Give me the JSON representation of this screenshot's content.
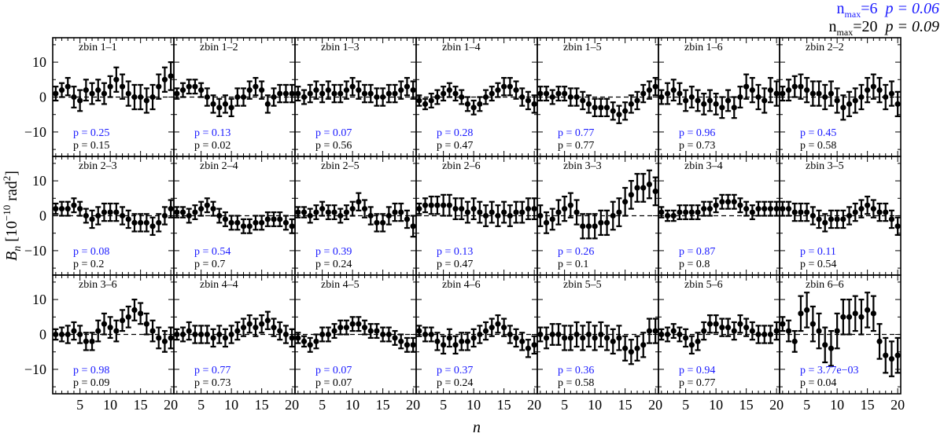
{
  "header": {
    "line1_label": "n",
    "line1_sub": "max",
    "line1_eq": "=6",
    "line1_p": "p = 0.06",
    "line2_label": "n",
    "line2_sub": "max",
    "line2_eq": "=20",
    "line2_p": "p = 0.09"
  },
  "colors": {
    "blue": "#1a1aff",
    "black": "#000000",
    "zero_line": "#000000"
  },
  "chart_data": {
    "type": "scatter",
    "grid_layout": "3 rows x 7 columns",
    "xlabel": "n",
    "ylabel": "B_n [10^-10 rad^2]",
    "xlim": [
      0.5,
      20.5
    ],
    "ylim": [
      -17,
      17
    ],
    "xticks": [
      5,
      10,
      15,
      20
    ],
    "yticks": [
      -10,
      0,
      10
    ],
    "x": [
      1,
      2,
      3,
      4,
      5,
      6,
      7,
      8,
      9,
      10,
      11,
      12,
      13,
      14,
      15,
      16,
      17,
      18,
      19,
      20
    ],
    "panels": [
      {
        "label": "zbin 1–1",
        "p_nmax6": "p = 0.25",
        "p_nmax20": "p = 0.15",
        "values": [
          1,
          2,
          3,
          0,
          -1,
          2,
          1,
          2,
          1,
          3,
          5,
          3,
          1,
          0,
          0,
          -1,
          0,
          3,
          5,
          6
        ],
        "errors": [
          2,
          2,
          2.5,
          3,
          3,
          3,
          3,
          3,
          3,
          3,
          3.5,
          3.5,
          3.5,
          3.5,
          3.5,
          3.5,
          3.5,
          3.5,
          3.5,
          4
        ]
      },
      {
        "label": "zbin 1–2",
        "p_nmax6": "p = 0.13",
        "p_nmax20": "p = 0.02",
        "values": [
          1,
          2,
          3,
          3,
          2,
          0,
          -2,
          -3,
          -2,
          -3,
          0,
          0,
          2,
          3,
          2,
          -2,
          0,
          1,
          1,
          1
        ],
        "errors": [
          1.5,
          2,
          2,
          2,
          2,
          2.5,
          2.5,
          2.5,
          2.5,
          2.5,
          2.5,
          2.5,
          2.5,
          2.5,
          2.5,
          2.5,
          2.5,
          2.5,
          2.5,
          2.5
        ]
      },
      {
        "label": "zbin 1–3",
        "p_nmax6": "p = 0.07",
        "p_nmax20": "p = 0.56",
        "values": [
          1,
          0,
          1,
          2,
          1,
          2,
          1,
          1,
          2,
          3,
          2,
          1,
          1,
          0,
          0,
          1,
          1,
          2,
          3,
          2
        ],
        "errors": [
          2,
          2,
          2.5,
          2.5,
          2.5,
          2.5,
          2.5,
          2.5,
          2.5,
          2.5,
          2.5,
          2.5,
          2.5,
          2.5,
          2.5,
          2.5,
          2.5,
          2.5,
          2.5,
          2.5
        ]
      },
      {
        "label": "zbin 1–4",
        "p_nmax6": "p = 0.28",
        "p_nmax20": "p = 0.47",
        "values": [
          -1,
          -2,
          -1,
          0,
          1,
          2,
          1,
          0,
          -2,
          -3,
          -2,
          0,
          1,
          2,
          3,
          3,
          2,
          0,
          -1,
          -2
        ],
        "errors": [
          1.5,
          1.5,
          2,
          2,
          2,
          2,
          2,
          2,
          2,
          2,
          2,
          2,
          2,
          2,
          2.5,
          2.5,
          2.5,
          2.5,
          2.5,
          2.5
        ]
      },
      {
        "label": "zbin 1–5",
        "p_nmax6": "p = 0.77",
        "p_nmax20": "p = 0.77",
        "values": [
          1,
          1,
          0,
          1,
          1,
          0,
          0,
          -1,
          -2,
          -3,
          -3,
          -3,
          -4,
          -5,
          -4,
          -2,
          -1,
          1,
          2,
          3
        ],
        "errors": [
          2,
          2,
          2,
          2,
          2,
          2.5,
          2.5,
          2.5,
          2.5,
          2.5,
          2.5,
          2.5,
          2.5,
          2.5,
          2.5,
          2.5,
          2.5,
          2.5,
          2.5,
          2.5
        ]
      },
      {
        "label": "zbin 1–6",
        "p_nmax6": "p = 0.96",
        "p_nmax20": "p = 0.73",
        "values": [
          0,
          1,
          2,
          1,
          -1,
          0,
          -1,
          -2,
          -1,
          -2,
          -3,
          -1,
          -3,
          0,
          3,
          2,
          0,
          -1,
          2,
          1
        ],
        "errors": [
          2,
          3,
          3,
          3,
          3,
          3,
          3,
          3,
          3,
          3,
          3,
          3,
          3,
          3,
          3.5,
          3.5,
          3.5,
          3.5,
          3.5,
          3.5
        ]
      },
      {
        "label": "zbin 2–2",
        "p_nmax6": "p = 0.45",
        "p_nmax20": "p = 0.58",
        "values": [
          1,
          2,
          3,
          3,
          2,
          1,
          1,
          0,
          1,
          -1,
          -3,
          -2,
          -1,
          0,
          2,
          3,
          2,
          0,
          1,
          -2
        ],
        "errors": [
          2,
          3,
          3,
          3.5,
          3.5,
          3.5,
          3.5,
          3.5,
          3.5,
          3.5,
          3.5,
          3.5,
          3.5,
          3.5,
          3.5,
          3.5,
          3.5,
          3.5,
          3.5,
          3.5
        ]
      },
      {
        "label": "zbin 2–3",
        "p_nmax6": "p = 0.08",
        "p_nmax20": "p = 0.2",
        "values": [
          2,
          2,
          2,
          3,
          2,
          0,
          -1,
          0,
          1,
          1,
          1,
          0,
          -1,
          -2,
          -2,
          -2,
          -3,
          -2,
          0,
          2
        ],
        "errors": [
          1.5,
          2,
          2,
          2,
          2,
          2,
          2.5,
          2.5,
          2.5,
          2.5,
          2.5,
          2.5,
          2.5,
          2.5,
          2.5,
          2.5,
          2.5,
          2.5,
          2.5,
          2.5
        ]
      },
      {
        "label": "zbin 2–4",
        "p_nmax6": "p = 0.54",
        "p_nmax20": "p = 0.7",
        "values": [
          1,
          1,
          0,
          1,
          2,
          3,
          2,
          0,
          -1,
          -2,
          -2,
          -3,
          -3,
          -2,
          -2,
          -1,
          -1,
          -1,
          -2,
          -3
        ],
        "errors": [
          1.5,
          1.5,
          2,
          2,
          2,
          2,
          2,
          2,
          2,
          2,
          2,
          2,
          2,
          2,
          2,
          2,
          2,
          2,
          2,
          2
        ]
      },
      {
        "label": "zbin 2–5",
        "p_nmax6": "p = 0.39",
        "p_nmax20": "p = 0.24",
        "values": [
          1,
          1,
          0,
          1,
          2,
          1,
          1,
          0,
          1,
          2,
          4,
          2,
          0,
          -2,
          -2,
          0,
          1,
          1,
          -1,
          -3
        ],
        "errors": [
          1.5,
          1.5,
          2,
          2,
          2,
          2,
          2,
          2,
          2,
          2,
          2.5,
          2.5,
          2.5,
          2.5,
          2.5,
          2.5,
          2.5,
          2.5,
          2.5,
          3
        ]
      },
      {
        "label": "zbin 2–6",
        "p_nmax6": "p = 0.13",
        "p_nmax20": "p = 0.47",
        "values": [
          2,
          3,
          3,
          3,
          3,
          3,
          2,
          2,
          1,
          2,
          1,
          0,
          1,
          0,
          1,
          0,
          1,
          1,
          2,
          2
        ],
        "errors": [
          1.5,
          2,
          2.5,
          2.5,
          3,
          3,
          3,
          3,
          3,
          3,
          3,
          3,
          3,
          3,
          3,
          3,
          3,
          3,
          3,
          3
        ]
      },
      {
        "label": "zbin 3–3",
        "p_nmax6": "p = 0.26",
        "p_nmax20": "p = 0.1",
        "values": [
          0,
          -2,
          -1,
          1,
          2,
          3,
          1,
          -3,
          -3,
          -3,
          -2,
          -2,
          0,
          1,
          4,
          6,
          8,
          8,
          9,
          7
        ],
        "errors": [
          3,
          3,
          3,
          3.5,
          3.5,
          3.5,
          3.5,
          3.5,
          3.5,
          3.5,
          3.5,
          3.5,
          4,
          4,
          4,
          4,
          4,
          4,
          4,
          4
        ]
      },
      {
        "label": "zbin 3–4",
        "p_nmax6": "p = 0.87",
        "p_nmax20": "p = 0.8",
        "values": [
          1,
          0,
          0,
          1,
          1,
          1,
          1,
          2,
          2,
          3,
          4,
          4,
          4,
          3,
          2,
          1,
          2,
          2,
          2,
          2
        ],
        "errors": [
          1.5,
          1.5,
          1.5,
          2,
          2,
          2,
          2,
          2,
          2,
          2,
          2,
          2,
          2,
          2,
          2,
          2,
          2,
          2,
          2,
          2
        ]
      },
      {
        "label": "zbin 3–5",
        "p_nmax6": "p = 0.11",
        "p_nmax20": "p = 0.54",
        "values": [
          2,
          2,
          1,
          1,
          1,
          0,
          -1,
          -2,
          -1,
          -1,
          -1,
          0,
          1,
          2,
          3,
          2,
          1,
          1,
          -1,
          -3
        ],
        "errors": [
          2,
          2,
          2.5,
          2.5,
          2.5,
          2.5,
          2.5,
          2.5,
          2.5,
          2.5,
          2.5,
          2.5,
          2.5,
          2.5,
          2.5,
          2.5,
          2.5,
          2.5,
          2.5,
          2.5
        ]
      },
      {
        "label": "zbin 3–6",
        "p_nmax6": "p = 0.98",
        "p_nmax20": "p = 0.09",
        "values": [
          0,
          0,
          0,
          1,
          0,
          -2,
          -2,
          1,
          3,
          2,
          1,
          4,
          5,
          7,
          6,
          3,
          1,
          -1,
          -2,
          -1
        ],
        "errors": [
          1.5,
          2,
          2.5,
          2.5,
          2.5,
          2.5,
          2.5,
          3,
          3,
          3,
          3,
          3,
          3,
          3,
          3,
          3,
          3,
          3,
          3,
          3
        ]
      },
      {
        "label": "zbin 4–4",
        "p_nmax6": "p = 0.77",
        "p_nmax20": "p = 0.73",
        "values": [
          0,
          0,
          1,
          0,
          0,
          0,
          -1,
          0,
          -1,
          0,
          1,
          2,
          3,
          2,
          3,
          4,
          2,
          1,
          0,
          -1
        ],
        "errors": [
          1.5,
          2,
          2.5,
          2.5,
          2.5,
          2.5,
          2.5,
          2.5,
          2.5,
          2.5,
          2.5,
          2.5,
          2.5,
          2.5,
          2.5,
          2.5,
          2.5,
          2.5,
          2.5,
          2.5
        ]
      },
      {
        "label": "zbin 4–5",
        "p_nmax6": "p = 0.07",
        "p_nmax20": "p = 0.07",
        "values": [
          -1,
          -2,
          -3,
          -2,
          0,
          0,
          1,
          2,
          2,
          3,
          3,
          2,
          1,
          1,
          0,
          0,
          -1,
          -2,
          -3,
          -3
        ],
        "errors": [
          1.5,
          1.5,
          2,
          2,
          2,
          2,
          2,
          2,
          2,
          2,
          2,
          2,
          2,
          2,
          2,
          2,
          2,
          2,
          2,
          2
        ]
      },
      {
        "label": "zbin 4–6",
        "p_nmax6": "p = 0.37",
        "p_nmax20": "p = 0.24",
        "values": [
          1,
          0,
          0,
          -2,
          -3,
          -1,
          -3,
          -2,
          -2,
          -1,
          0,
          1,
          2,
          3,
          2,
          0,
          -1,
          -2,
          -4,
          -3
        ],
        "errors": [
          1.5,
          2,
          2,
          2.5,
          2.5,
          2.5,
          2.5,
          2.5,
          2.5,
          2.5,
          2.5,
          2.5,
          2.5,
          2.5,
          2.5,
          2.5,
          2.5,
          2.5,
          2.5,
          2.5
        ]
      },
      {
        "label": "zbin 5–5",
        "p_nmax6": "p = 0.36",
        "p_nmax20": "p = 0.58",
        "values": [
          0,
          -1,
          0,
          0,
          -1,
          -1,
          0,
          -1,
          0,
          -1,
          0,
          -1,
          -2,
          -1,
          -4,
          -5,
          -4,
          -3,
          1,
          1
        ],
        "errors": [
          2,
          3,
          3,
          3,
          3.5,
          3.5,
          3.5,
          3.5,
          3.5,
          3.5,
          3.5,
          3.5,
          3.5,
          3.5,
          3.5,
          3.5,
          3.5,
          3.5,
          3.5,
          3.5
        ]
      },
      {
        "label": "zbin 5–6",
        "p_nmax6": "p = 0.94",
        "p_nmax20": "p = 0.77",
        "values": [
          0,
          0,
          1,
          0,
          -1,
          -3,
          -2,
          1,
          3,
          3,
          2,
          2,
          1,
          3,
          2,
          1,
          0,
          0,
          0,
          1
        ],
        "errors": [
          1.5,
          2,
          2,
          2,
          2.5,
          2.5,
          2.5,
          2.5,
          2.5,
          2.5,
          2.5,
          2.5,
          2.5,
          2.5,
          2.5,
          2.5,
          2.5,
          2.5,
          2.5,
          2.5
        ]
      },
      {
        "label": "zbin 6–6",
        "p_nmax6": "p = 3.77e−03",
        "p_nmax20": "p = 0.04",
        "values": [
          3,
          1,
          -2,
          6,
          7,
          3,
          1,
          -3,
          -4,
          1,
          5,
          5,
          6,
          5,
          7,
          6,
          -2,
          -6,
          -7,
          -6
        ],
        "errors": [
          2,
          3,
          3,
          5,
          5,
          5,
          5,
          5,
          5,
          5,
          5,
          5,
          5,
          5,
          5,
          5,
          5,
          5,
          5,
          5
        ]
      }
    ]
  }
}
